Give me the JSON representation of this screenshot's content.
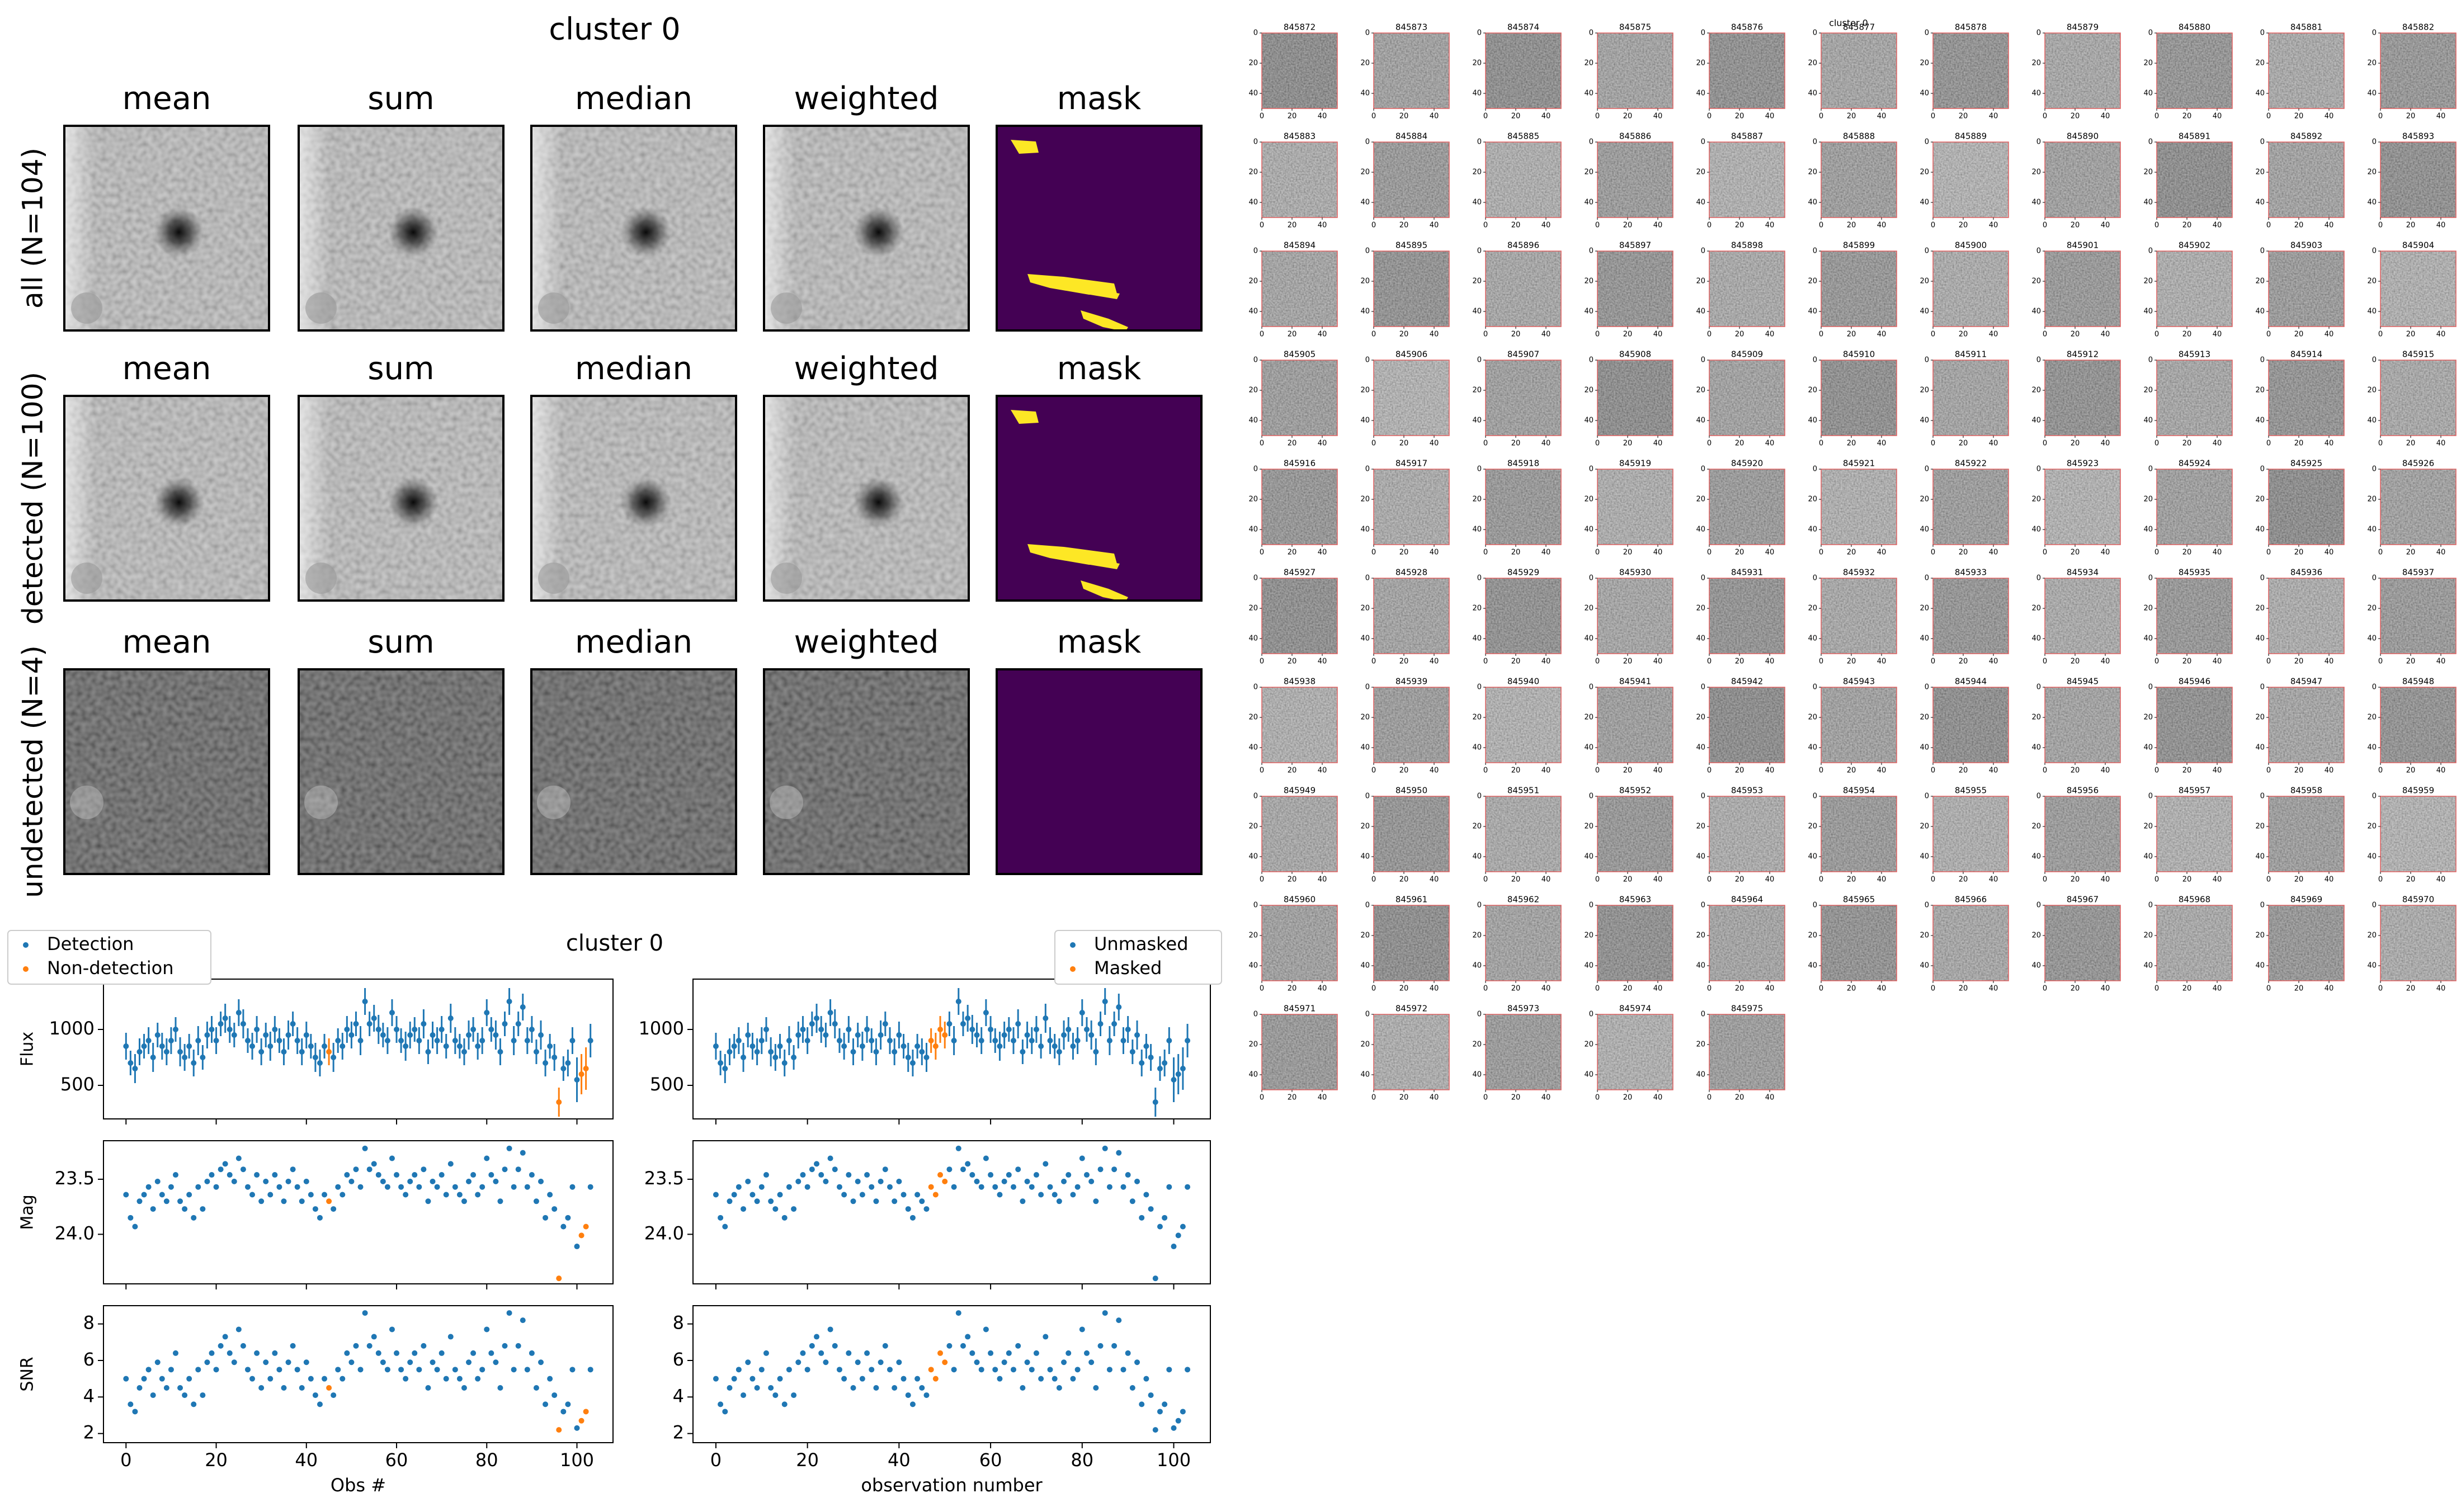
{
  "stacks": {
    "title": "cluster 0",
    "columns": [
      "mean",
      "sum",
      "median",
      "weighted",
      "mask"
    ],
    "rows": [
      "all (N=104)",
      "detected (N=100)",
      "undetected (N=4)"
    ]
  },
  "chart_data": {
    "type": "scatter",
    "title": "cluster 0",
    "x": [
      0,
      1,
      2,
      3,
      4,
      5,
      6,
      7,
      8,
      9,
      10,
      11,
      12,
      13,
      14,
      15,
      16,
      17,
      18,
      19,
      20,
      21,
      22,
      23,
      24,
      25,
      26,
      27,
      28,
      29,
      30,
      31,
      32,
      33,
      34,
      35,
      36,
      37,
      38,
      39,
      40,
      41,
      42,
      43,
      44,
      45,
      46,
      47,
      48,
      49,
      50,
      51,
      52,
      53,
      54,
      55,
      56,
      57,
      58,
      59,
      60,
      61,
      62,
      63,
      64,
      65,
      66,
      67,
      68,
      69,
      70,
      71,
      72,
      73,
      74,
      75,
      76,
      77,
      78,
      79,
      80,
      81,
      82,
      83,
      84,
      85,
      86,
      87,
      88,
      89,
      90,
      91,
      92,
      93,
      94,
      95,
      96,
      97,
      98,
      99,
      100,
      101,
      102,
      103
    ],
    "xlim": [
      -5,
      108
    ],
    "xticks": [
      0,
      20,
      40,
      60,
      80,
      100
    ],
    "panels": [
      {
        "ylabel": "Flux",
        "ylim": [
          200,
          1450
        ],
        "yticks": [
          500,
          1000
        ],
        "values": [
          850,
          700,
          650,
          800,
          850,
          900,
          750,
          950,
          850,
          800,
          900,
          1000,
          800,
          750,
          850,
          700,
          900,
          750,
          950,
          1000,
          900,
          1050,
          1100,
          1000,
          950,
          1150,
          1050,
          900,
          850,
          1000,
          800,
          950,
          850,
          1000,
          900,
          800,
          950,
          1050,
          900,
          800,
          950,
          850,
          750,
          700,
          850,
          800,
          750,
          900,
          850,
          1000,
          950,
          1050,
          900,
          1250,
          1050,
          1100,
          1000,
          950,
          900,
          1150,
          1000,
          900,
          850,
          950,
          1000,
          900,
          1050,
          800,
          950,
          900,
          1000,
          850,
          1100,
          900,
          850,
          800,
          950,
          1000,
          850,
          900,
          1150,
          1000,
          950,
          800,
          1050,
          1250,
          900,
          1050,
          1200,
          900,
          1000,
          800,
          950,
          700,
          850,
          750,
          350,
          650,
          700,
          900,
          550,
          600,
          650,
          900
        ],
        "errors": [
          120,
          110,
          130,
          120,
          110,
          120,
          130,
          110,
          120,
          120,
          120,
          110,
          130,
          120,
          110,
          120,
          130,
          110,
          120,
          120,
          120,
          110,
          130,
          120,
          110,
          120,
          130,
          110,
          120,
          120,
          120,
          110,
          130,
          120,
          110,
          120,
          130,
          110,
          120,
          120,
          120,
          110,
          130,
          120,
          110,
          120,
          130,
          110,
          120,
          120,
          120,
          110,
          130,
          120,
          110,
          120,
          130,
          110,
          120,
          120,
          120,
          110,
          130,
          120,
          110,
          120,
          130,
          110,
          120,
          120,
          120,
          110,
          130,
          120,
          110,
          120,
          130,
          110,
          120,
          120,
          120,
          110,
          130,
          120,
          110,
          120,
          130,
          110,
          120,
          120,
          120,
          110,
          130,
          120,
          110,
          120,
          130,
          110,
          120,
          120,
          200,
          180,
          190,
          150
        ]
      },
      {
        "ylabel": "Mag",
        "ylim": [
          24.45,
          23.15
        ],
        "yticks": [
          23.5,
          {
            "value": 24,
            "label": "24.0"
          }
        ],
        "values": [
          23.64,
          23.85,
          23.93,
          23.7,
          23.64,
          23.57,
          23.77,
          23.52,
          23.64,
          23.7,
          23.57,
          23.46,
          23.7,
          23.77,
          23.64,
          23.85,
          23.57,
          23.77,
          23.52,
          23.46,
          23.57,
          23.41,
          23.36,
          23.46,
          23.52,
          23.31,
          23.41,
          23.57,
          23.64,
          23.46,
          23.7,
          23.52,
          23.64,
          23.46,
          23.57,
          23.7,
          23.52,
          23.41,
          23.57,
          23.7,
          23.52,
          23.64,
          23.77,
          23.85,
          23.64,
          23.7,
          23.77,
          23.57,
          23.64,
          23.46,
          23.52,
          23.41,
          23.57,
          23.22,
          23.41,
          23.36,
          23.46,
          23.52,
          23.57,
          23.31,
          23.46,
          23.57,
          23.64,
          23.52,
          23.46,
          23.57,
          23.41,
          23.7,
          23.52,
          23.57,
          23.46,
          23.64,
          23.36,
          23.57,
          23.64,
          23.7,
          23.52,
          23.46,
          23.64,
          23.57,
          23.31,
          23.46,
          23.52,
          23.7,
          23.41,
          23.22,
          23.57,
          23.41,
          23.26,
          23.57,
          23.46,
          23.7,
          23.52,
          23.85,
          23.64,
          23.77,
          24.4,
          23.93,
          23.85,
          23.57,
          24.11,
          24.01,
          23.93,
          23.57
        ]
      },
      {
        "ylabel": "SNR",
        "ylim": [
          1.5,
          9
        ],
        "yticks": [
          2,
          4,
          6,
          8
        ],
        "values": [
          5.0,
          3.6,
          3.2,
          4.5,
          5.0,
          5.5,
          4.1,
          5.9,
          5.0,
          4.5,
          5.5,
          6.4,
          4.5,
          4.1,
          5.0,
          3.6,
          5.5,
          4.1,
          5.9,
          6.4,
          5.5,
          6.8,
          7.3,
          6.4,
          5.9,
          7.7,
          6.8,
          5.5,
          5.0,
          6.4,
          4.5,
          5.9,
          5.0,
          6.4,
          5.5,
          4.5,
          5.9,
          6.8,
          5.5,
          4.5,
          5.9,
          5.0,
          4.1,
          3.6,
          5.0,
          4.5,
          4.1,
          5.5,
          5.0,
          6.4,
          5.9,
          6.8,
          5.5,
          8.6,
          6.8,
          7.3,
          6.4,
          5.9,
          5.5,
          7.7,
          6.4,
          5.5,
          5.0,
          5.9,
          6.4,
          5.5,
          6.8,
          4.5,
          5.9,
          5.5,
          6.4,
          5.0,
          7.3,
          5.5,
          5.0,
          4.5,
          5.9,
          6.4,
          5.0,
          5.5,
          7.7,
          6.4,
          5.9,
          4.5,
          6.8,
          8.6,
          5.5,
          6.8,
          8.2,
          5.5,
          6.4,
          4.5,
          5.9,
          3.6,
          5.0,
          4.1,
          2.2,
          3.2,
          3.6,
          5.5,
          2.3,
          2.7,
          3.2,
          5.5
        ]
      }
    ],
    "columns": [
      {
        "xlabel": "Obs #",
        "legend": "upper left",
        "series": [
          {
            "name": "Detection",
            "color": "#1f77b4"
          },
          {
            "name": "Non-detection",
            "color": "#ff7f0e",
            "x": [
              45,
              96,
              101,
              102
            ]
          }
        ]
      },
      {
        "xlabel": "observation number",
        "legend": "upper right",
        "series": [
          {
            "name": "Unmasked",
            "color": "#1f77b4"
          },
          {
            "name": "Masked",
            "color": "#ff7f0e",
            "x": [
              47,
              48,
              49,
              50
            ]
          }
        ]
      }
    ]
  },
  "cutouts": {
    "title": "cluster 0",
    "xticks": [
      0,
      20,
      40
    ],
    "yticks": [
      0,
      20,
      40
    ],
    "size": 50,
    "labels": [
      "845872",
      "845873",
      "845874",
      "845875",
      "845876",
      "845877",
      "845878",
      "845879",
      "845880",
      "845881",
      "845882",
      "845883",
      "845884",
      "845885",
      "845886",
      "845887",
      "845888",
      "845889",
      "845890",
      "845891",
      "845892",
      "845893",
      "845894",
      "845895",
      "845896",
      "845897",
      "845898",
      "845899",
      "845900",
      "845901",
      "845902",
      "845903",
      "845904",
      "845905",
      "845906",
      "845907",
      "845908",
      "845909",
      "845910",
      "845911",
      "845912",
      "845913",
      "845914",
      "845915",
      "845916",
      "845917",
      "845918",
      "845919",
      "845920",
      "845921",
      "845922",
      "845923",
      "845924",
      "845925",
      "845926",
      "845927",
      "845928",
      "845929",
      "845930",
      "845931",
      "845932",
      "845933",
      "845934",
      "845935",
      "845936",
      "845937",
      "845938",
      "845939",
      "845940",
      "845941",
      "845942",
      "845943",
      "845944",
      "845945",
      "845946",
      "845947",
      "845948",
      "845949",
      "845950",
      "845951",
      "845952",
      "845953",
      "845954",
      "845955",
      "845956",
      "845957",
      "845958",
      "845959",
      "845960",
      "845961",
      "845962",
      "845963",
      "845964",
      "845965",
      "845966",
      "845967",
      "845968",
      "845969",
      "845970",
      "845971",
      "845972",
      "845973",
      "845974",
      "845975"
    ]
  }
}
